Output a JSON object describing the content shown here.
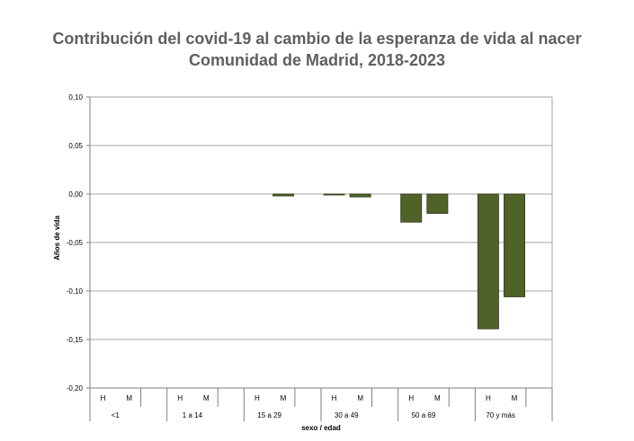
{
  "chart_data": {
    "type": "bar",
    "title": "Contribución del covid-19 al cambio de la esperanza de vida al nacer",
    "subtitle": "Comunidad de Madrid, 2018-2023",
    "xlabel": "sexo / edad",
    "ylabel": "Años de vida",
    "ylim": [
      -0.2,
      0.1
    ],
    "yticks": [
      "0,10",
      "0,05",
      "0,00",
      "-0,05",
      "-0,10",
      "-0,15",
      "-0,20"
    ],
    "grid": true,
    "legend": "none",
    "groups": [
      "<1",
      "1 a 14",
      "15 a 29",
      "30 a 49",
      "50 a 69",
      "70 y más"
    ],
    "sexes": [
      "H",
      "M"
    ],
    "values": [
      [
        0.0,
        0.0
      ],
      [
        0.0,
        0.0
      ],
      [
        0.0,
        -0.002
      ],
      [
        -0.001,
        -0.003
      ],
      [
        -0.029,
        -0.02
      ],
      [
        -0.139,
        -0.106
      ]
    ],
    "bar_color": "#4f6228",
    "bar_edge": "#2f3b17"
  }
}
